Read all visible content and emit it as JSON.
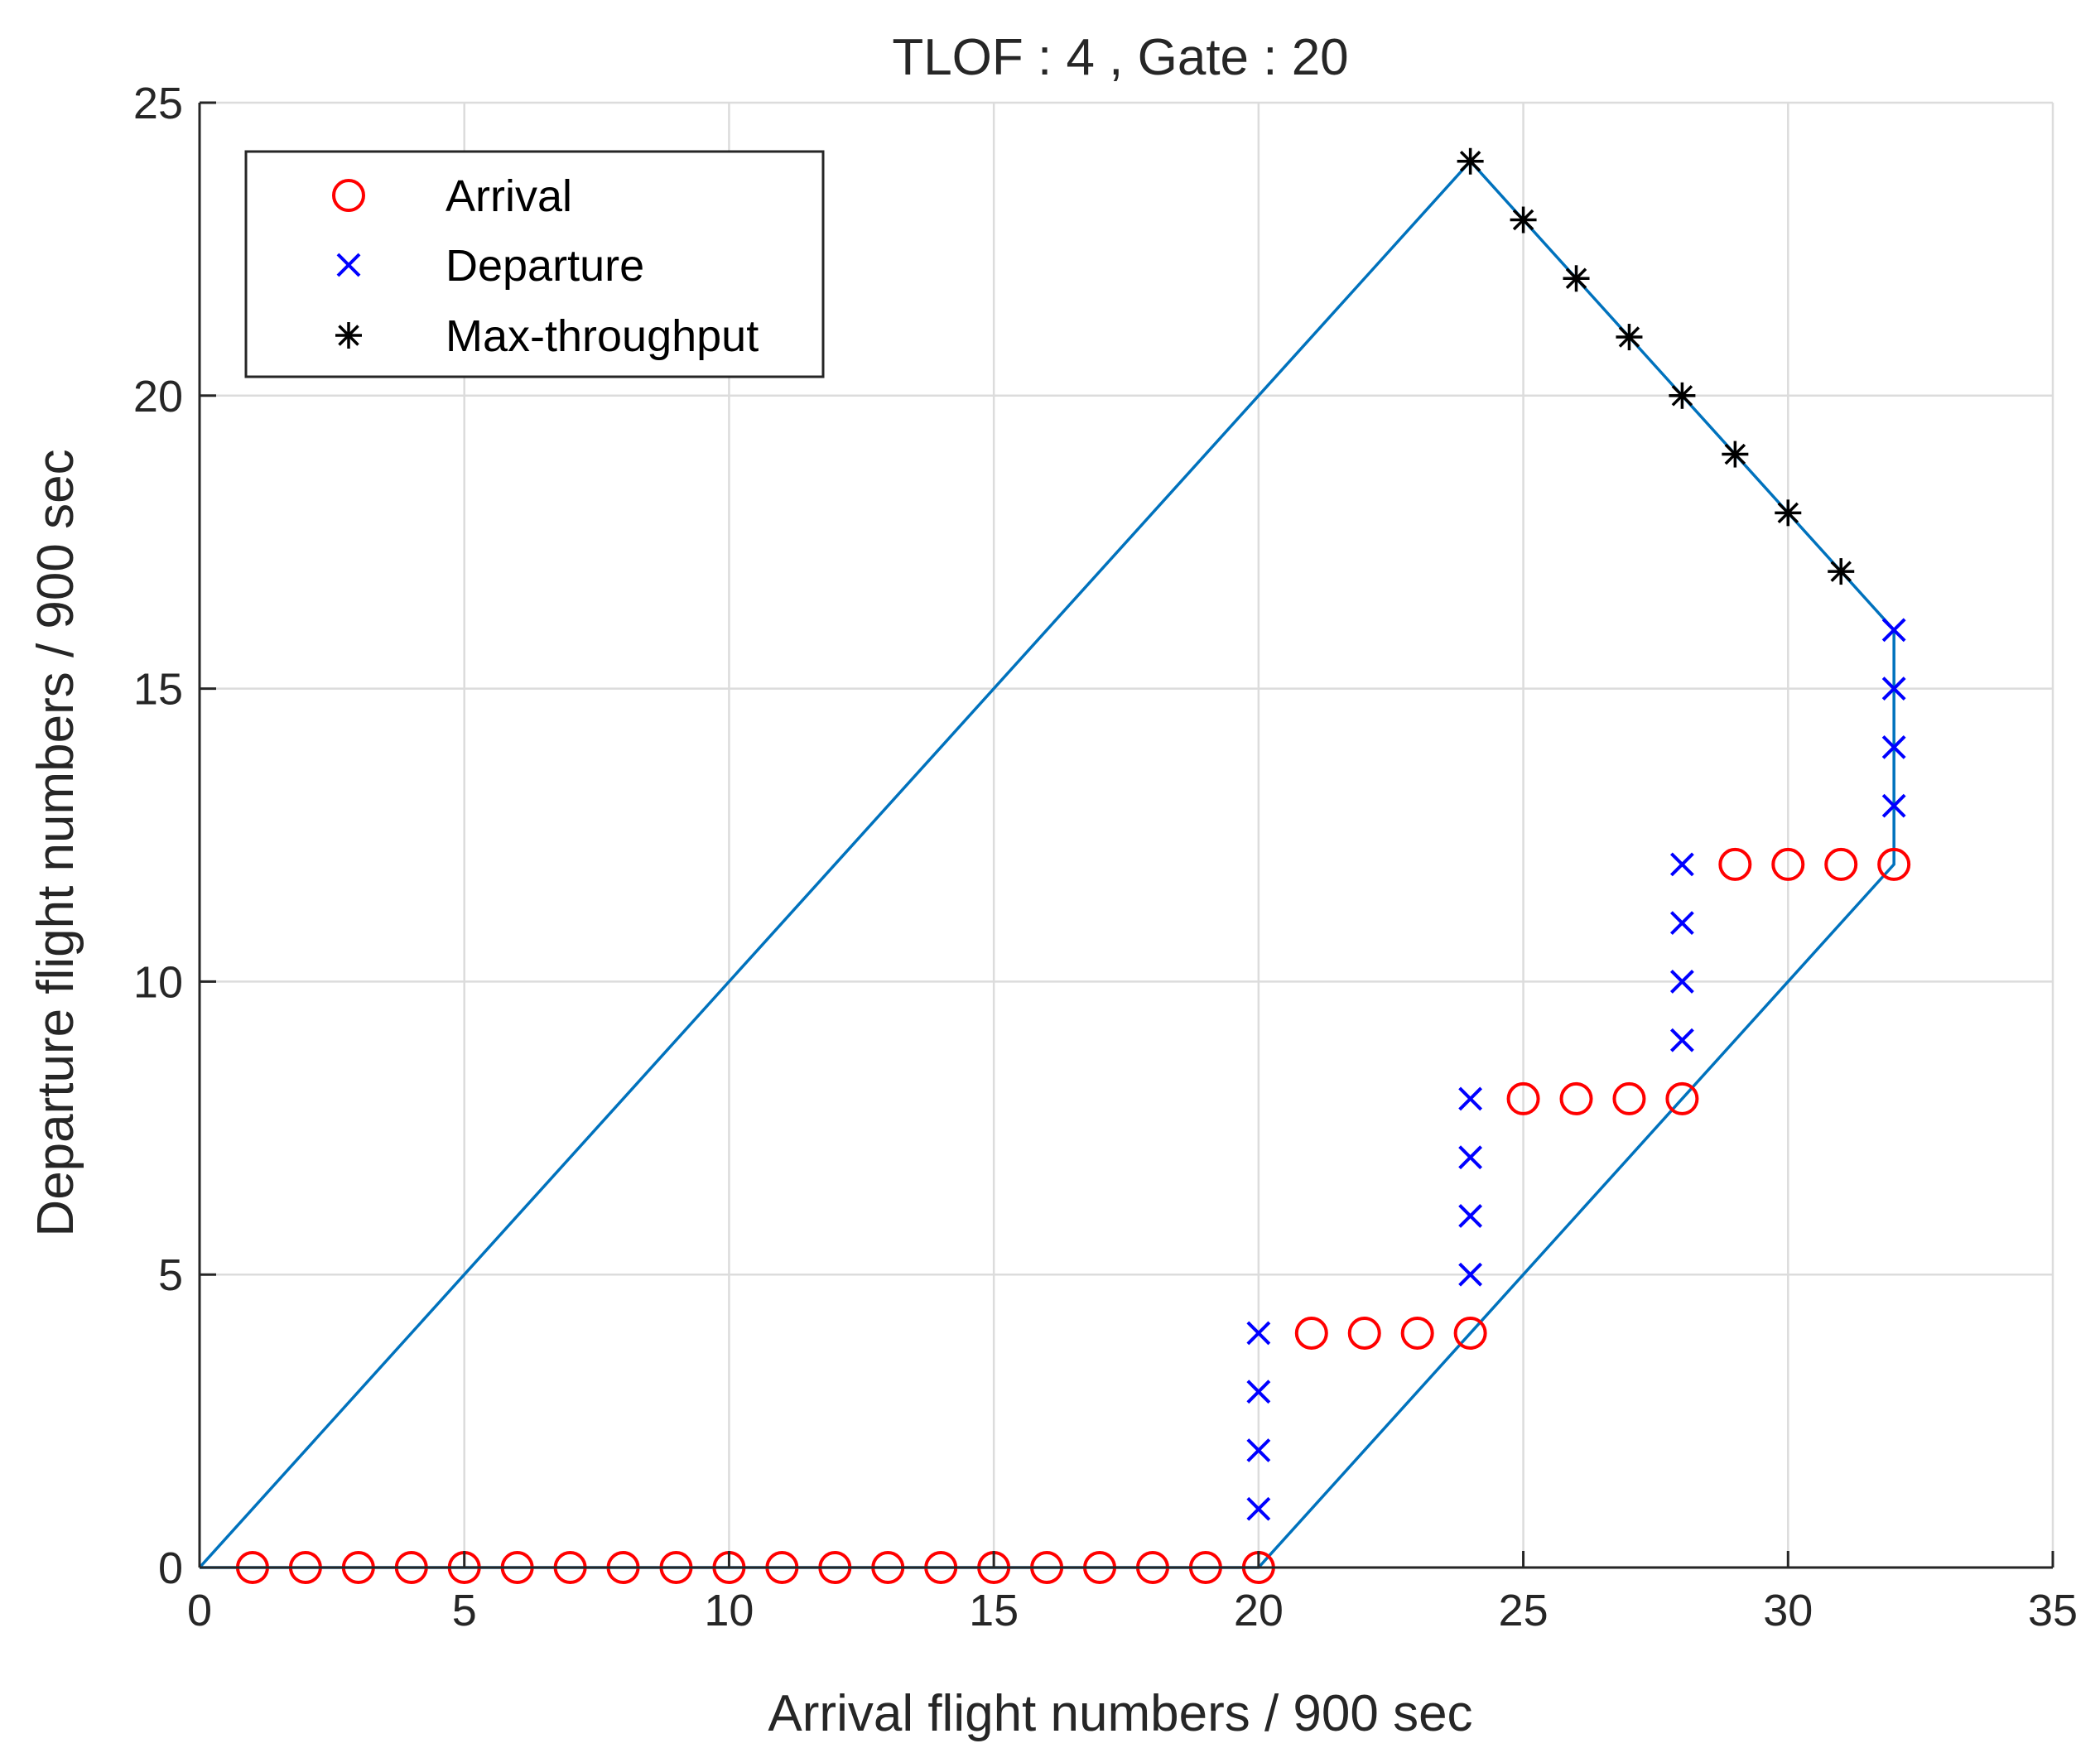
{
  "chart_data": {
    "type": "scatter",
    "title": "TLOF : 4 , Gate : 20",
    "xlabel": "Arrival flight numbers / 900 sec",
    "ylabel": "Departure flight numbers / 900 sec",
    "xlim": [
      0,
      35
    ],
    "ylim": [
      0,
      25
    ],
    "xticks": [
      0,
      5,
      10,
      15,
      20,
      25,
      30,
      35
    ],
    "yticks": [
      0,
      5,
      10,
      15,
      20,
      25
    ],
    "xtick_labels": [
      "0",
      "5",
      "10",
      "15",
      "20",
      "25",
      "30",
      "35"
    ],
    "ytick_labels": [
      "0",
      "5",
      "10",
      "15",
      "20",
      "25"
    ],
    "grid": true,
    "legend_position": "top-left",
    "boundary_line": {
      "color": "#0072BD",
      "x": [
        0,
        24,
        32,
        32,
        20,
        0
      ],
      "y": [
        0,
        24,
        16,
        12,
        0,
        0
      ]
    },
    "series": [
      {
        "name": "Arrival",
        "marker": "circle",
        "color": "#FF0000",
        "x": [
          1,
          2,
          3,
          4,
          5,
          6,
          7,
          8,
          9,
          10,
          11,
          12,
          13,
          14,
          15,
          16,
          17,
          18,
          19,
          20,
          21,
          22,
          23,
          24,
          25,
          26,
          27,
          28,
          29,
          30,
          31,
          32
        ],
        "y": [
          0,
          0,
          0,
          0,
          0,
          0,
          0,
          0,
          0,
          0,
          0,
          0,
          0,
          0,
          0,
          0,
          0,
          0,
          0,
          0,
          4,
          4,
          4,
          4,
          8,
          8,
          8,
          8,
          12,
          12,
          12,
          12
        ]
      },
      {
        "name": "Departure",
        "marker": "x",
        "color": "#0000FF",
        "x": [
          20,
          20,
          20,
          20,
          24,
          24,
          24,
          24,
          28,
          28,
          28,
          28,
          32,
          32,
          32,
          32
        ],
        "y": [
          1,
          2,
          3,
          4,
          5,
          6,
          7,
          8,
          9,
          10,
          11,
          12,
          13,
          14,
          15,
          16
        ]
      },
      {
        "name": "Max-throughput",
        "marker": "asterisk",
        "color": "#000000",
        "x": [
          24,
          25,
          26,
          27,
          28,
          29,
          30,
          31
        ],
        "y": [
          24,
          23,
          22,
          21,
          20,
          19,
          18,
          17
        ]
      }
    ]
  }
}
